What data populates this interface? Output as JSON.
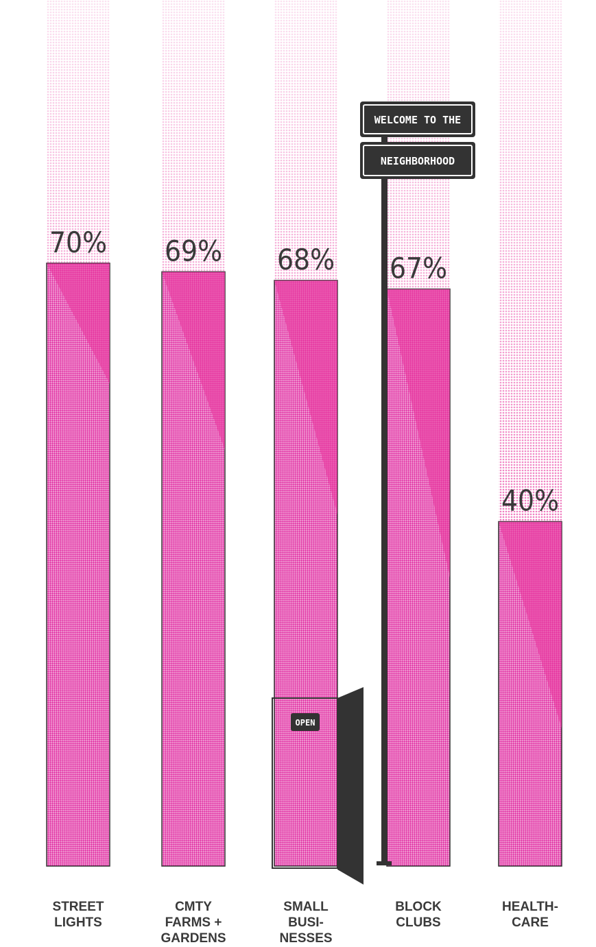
{
  "chart_data": {
    "type": "bar",
    "categories": [
      [
        "STREET",
        "LIGHTS"
      ],
      [
        "CMTY",
        "FARMS +",
        "GARDENS"
      ],
      [
        "SMALL",
        "BUSI-",
        "NESSES"
      ],
      [
        "BLOCK",
        "CLUBS"
      ],
      [
        "HEALTH-",
        "CARE"
      ]
    ],
    "values": [
      70,
      69,
      68,
      67,
      40
    ],
    "value_labels": [
      "70%",
      "69%",
      "68%",
      "67%",
      "40%"
    ],
    "color": "#e8399f",
    "ylim": [
      0,
      100
    ],
    "annotations": [
      "WELCOME TO THE",
      "NEIGHBORHOOD",
      "OPEN"
    ]
  }
}
